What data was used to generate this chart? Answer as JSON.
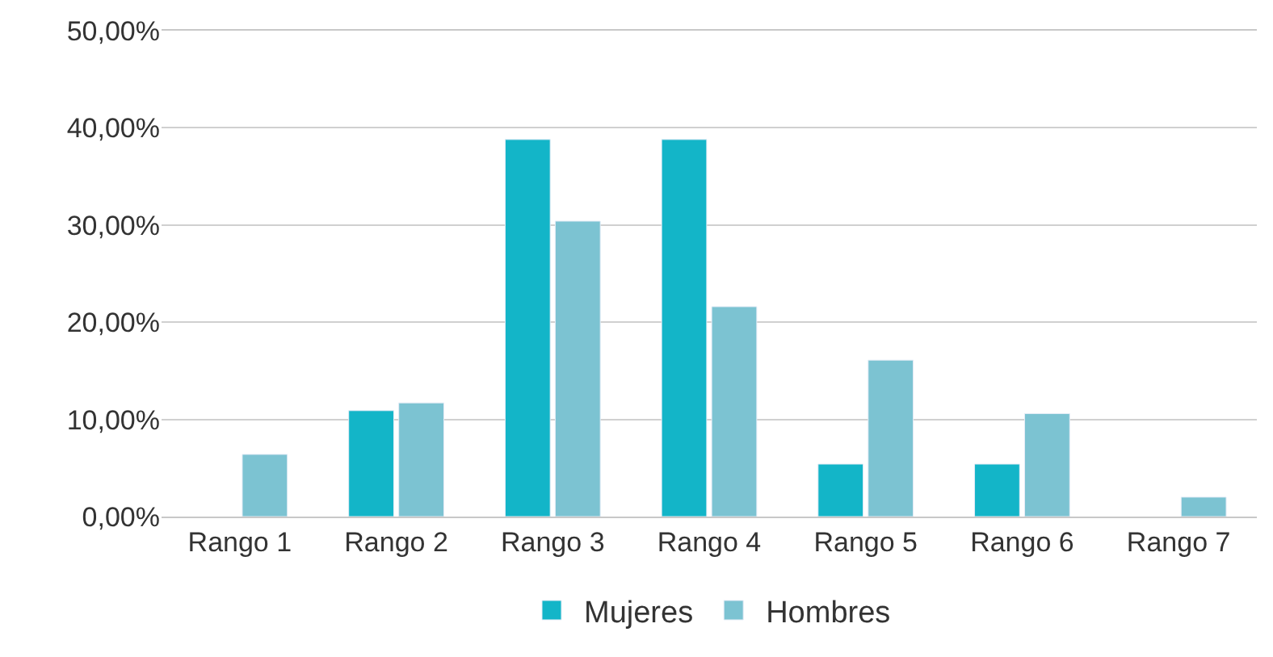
{
  "chart_data": {
    "type": "bar",
    "categories": [
      "Rango 1",
      "Rango 2",
      "Rango 3",
      "Rango 4",
      "Rango 5",
      "Rango 6",
      "Rango 7"
    ],
    "series": [
      {
        "name": "Mujeres",
        "color": "#13b5c8",
        "values": [
          null,
          10.9,
          38.8,
          38.8,
          5.4,
          5.4,
          null
        ]
      },
      {
        "name": "Hombres",
        "color": "#7cc3d2",
        "values": [
          6.4,
          11.7,
          30.4,
          21.6,
          16.1,
          10.6,
          2.0
        ]
      }
    ],
    "ylim": [
      0,
      50
    ],
    "yticks": [
      {
        "value": 0,
        "label": "0,00%"
      },
      {
        "value": 10,
        "label": "10,00%"
      },
      {
        "value": 20,
        "label": "20,00%"
      },
      {
        "value": 30,
        "label": "30,00%"
      },
      {
        "value": 40,
        "label": "40,00%"
      },
      {
        "value": 50,
        "label": "50,00%"
      }
    ],
    "grid": "y",
    "legend": "bottom"
  }
}
